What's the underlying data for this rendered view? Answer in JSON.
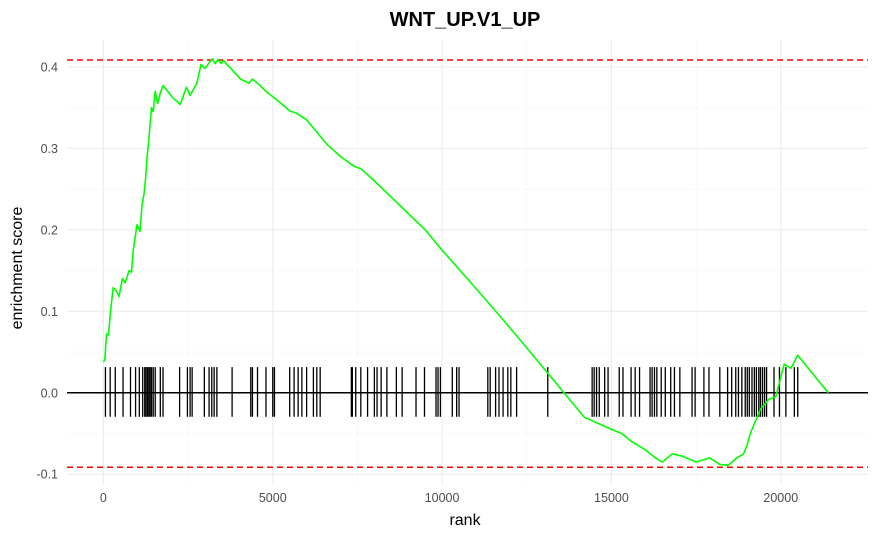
{
  "chart_data": {
    "type": "line",
    "title": "WNT_UP.V1_UP",
    "xlabel": "rank",
    "ylabel": "enrichment score",
    "xlim": [
      -1075,
      22575
    ],
    "ylim": [
      -0.112,
      0.433
    ],
    "x_ticks": [
      0,
      5000,
      10000,
      15000,
      20000
    ],
    "x_tick_labels": [
      "0",
      "5000",
      "10000",
      "15000",
      "20000"
    ],
    "y_ticks": [
      -0.1,
      0.0,
      0.1,
      0.2,
      0.3,
      0.4
    ],
    "y_tick_labels": [
      "-0.1",
      "0.0",
      "0.1",
      "0.2",
      "0.3",
      "0.4"
    ],
    "grid": true,
    "legend": "none",
    "colors": {
      "curve": "#00ff00",
      "reference": "#ff0000",
      "hits": "#000000",
      "zero_line": "#000000"
    },
    "reference_lines": [
      0.4085,
      -0.0915
    ],
    "series": [
      {
        "x": [
          0,
          40,
          90,
          150,
          210,
          290,
          380,
          460,
          560,
          640,
          760,
          830,
          880,
          990,
          1080,
          1140,
          1200,
          1250,
          1290,
          1340,
          1380,
          1420,
          1470,
          1530,
          1600,
          1680,
          1760,
          1860,
          2050,
          2270,
          2450,
          2560,
          2760,
          2880,
          3000,
          3120,
          3220,
          3300,
          3380,
          3480,
          3550,
          3620,
          3720,
          3850,
          4050,
          4300,
          4400,
          4550,
          4850,
          4950,
          5250,
          5500,
          5700,
          6000,
          6200,
          6300,
          6600,
          7000,
          7400,
          7600,
          8000,
          8500,
          9000,
          9500,
          10000,
          11000,
          12000,
          13000,
          14200,
          15000,
          15300,
          15600,
          16000,
          16300,
          16500,
          16800,
          17100,
          17500,
          17900,
          18200,
          18450,
          18700,
          18900,
          19000,
          19100,
          19200,
          19400,
          19650,
          19850,
          20100,
          20300,
          20400,
          20500,
          21400
        ],
        "y": [
          0.038,
          0.04,
          0.072,
          0.071,
          0.1,
          0.129,
          0.125,
          0.118,
          0.14,
          0.135,
          0.15,
          0.148,
          0.174,
          0.206,
          0.198,
          0.23,
          0.245,
          0.265,
          0.29,
          0.31,
          0.33,
          0.35,
          0.345,
          0.37,
          0.355,
          0.368,
          0.377,
          0.372,
          0.362,
          0.354,
          0.375,
          0.365,
          0.38,
          0.403,
          0.398,
          0.405,
          0.41,
          0.404,
          0.409,
          0.404,
          0.408,
          0.404,
          0.4,
          0.394,
          0.385,
          0.38,
          0.385,
          0.38,
          0.368,
          0.365,
          0.355,
          0.346,
          0.343,
          0.335,
          0.325,
          0.32,
          0.305,
          0.29,
          0.278,
          0.275,
          0.26,
          0.24,
          0.22,
          0.2,
          0.175,
          0.128,
          0.08,
          0.03,
          -0.03,
          -0.045,
          -0.05,
          -0.06,
          -0.07,
          -0.08,
          -0.085,
          -0.075,
          -0.078,
          -0.085,
          -0.08,
          -0.088,
          -0.089,
          -0.08,
          -0.075,
          -0.065,
          -0.05,
          -0.04,
          -0.02,
          -0.008,
          -0.005,
          0.035,
          0.03,
          0.038,
          0.046,
          0.0
        ]
      }
    ],
    "hits": [
      60,
      200,
      350,
      580,
      800,
      950,
      1060,
      1160,
      1220,
      1260,
      1300,
      1340,
      1380,
      1420,
      1470,
      1530,
      1680,
      1760,
      2250,
      2480,
      2560,
      2620,
      2980,
      3120,
      3200,
      3270,
      3350,
      3800,
      4350,
      4400,
      4550,
      4800,
      5000,
      5050,
      5500,
      5630,
      5750,
      5860,
      6000,
      6200,
      6300,
      6400,
      7320,
      7350,
      7450,
      7600,
      7800,
      8000,
      8080,
      8200,
      8370,
      8650,
      8820,
      9230,
      9480,
      9820,
      9880,
      9950,
      10300,
      10430,
      10500,
      11350,
      11420,
      11580,
      11680,
      11800,
      11940,
      12030,
      12200,
      13120,
      14430,
      14490,
      14560,
      14640,
      14800,
      14900,
      15230,
      15340,
      15580,
      15700,
      15830,
      16140,
      16200,
      16270,
      16340,
      16470,
      16590,
      16750,
      16860,
      17020,
      17380,
      17470,
      17730,
      17880,
      18200,
      18430,
      18550,
      18670,
      18750,
      18850,
      18950,
      19010,
      19070,
      19150,
      19220,
      19280,
      19350,
      19400,
      19460,
      19520,
      19580,
      19800,
      19960,
      20150,
      20400,
      20500
    ]
  }
}
